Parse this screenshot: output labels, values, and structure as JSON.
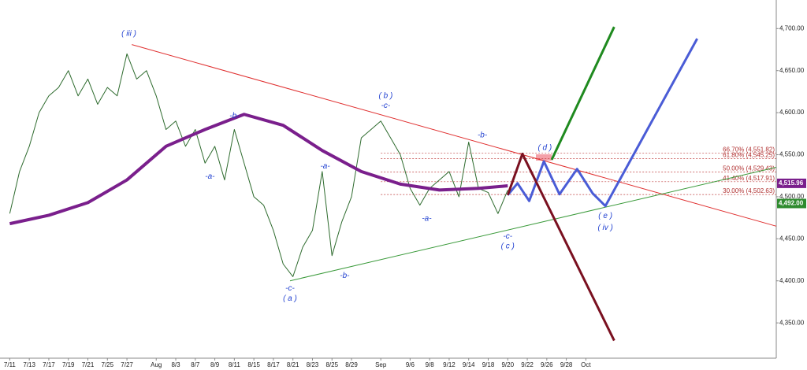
{
  "chart_data": {
    "type": "line",
    "xlim": [
      -1,
      78.5
    ],
    "ylim": [
      4308,
      4734
    ],
    "xticks": [
      {
        "value": 0,
        "label": "7/11"
      },
      {
        "value": 2,
        "label": "7/13"
      },
      {
        "value": 4,
        "label": "7/17"
      },
      {
        "value": 6,
        "label": "7/19"
      },
      {
        "value": 8,
        "label": "7/21"
      },
      {
        "value": 10,
        "label": "7/25"
      },
      {
        "value": 12,
        "label": "7/27"
      },
      {
        "value": 15,
        "label": "Aug"
      },
      {
        "value": 17,
        "label": "8/3"
      },
      {
        "value": 19,
        "label": "8/7"
      },
      {
        "value": 21,
        "label": "8/9"
      },
      {
        "value": 23,
        "label": "8/11"
      },
      {
        "value": 25,
        "label": "8/15"
      },
      {
        "value": 27,
        "label": "8/17"
      },
      {
        "value": 29,
        "label": "8/21"
      },
      {
        "value": 31,
        "label": "8/23"
      },
      {
        "value": 33,
        "label": "8/25"
      },
      {
        "value": 35,
        "label": "8/29"
      },
      {
        "value": 38,
        "label": "Sep"
      },
      {
        "value": 41,
        "label": "9/6"
      },
      {
        "value": 43,
        "label": "9/8"
      },
      {
        "value": 45,
        "label": "9/12"
      },
      {
        "value": 47,
        "label": "9/14"
      },
      {
        "value": 49,
        "label": "9/18"
      },
      {
        "value": 51,
        "label": "9/20"
      },
      {
        "value": 53,
        "label": "9/22"
      },
      {
        "value": 55,
        "label": "9/26"
      },
      {
        "value": 57,
        "label": "9/28"
      },
      {
        "value": 59,
        "label": "Oct"
      }
    ],
    "yticks": [
      {
        "value": 4350,
        "label": "4,350.00"
      },
      {
        "value": 4400,
        "label": "4,400.00"
      },
      {
        "value": 4450,
        "label": "4,450.00"
      },
      {
        "value": 4500,
        "label": "4,500.00"
      },
      {
        "value": 4550,
        "label": "4,550.00"
      },
      {
        "value": 4600,
        "label": "4,600.00"
      },
      {
        "value": 4650,
        "label": "4,650.00"
      },
      {
        "value": 4700,
        "label": "4,700.00"
      }
    ],
    "series": [
      {
        "color": "#2e6b2e",
        "width": 1,
        "x": [
          0,
          1,
          2,
          3,
          4,
          5,
          6,
          7,
          8,
          9,
          10,
          11,
          12,
          13,
          14,
          15,
          16,
          17,
          18,
          19,
          20,
          21,
          22,
          23,
          24,
          25,
          26,
          27,
          28,
          29,
          30,
          31,
          32,
          33,
          34,
          35,
          36,
          37,
          38,
          39,
          40,
          41,
          42,
          43,
          44,
          45,
          46,
          47,
          48,
          49,
          50,
          51
        ],
        "values": [
          4480,
          4530,
          4560,
          4600,
          4620,
          4630,
          4650,
          4620,
          4640,
          4610,
          4630,
          4620,
          4670,
          4640,
          4650,
          4620,
          4580,
          4590,
          4560,
          4580,
          4540,
          4560,
          4520,
          4580,
          4540,
          4500,
          4490,
          4460,
          4420,
          4405,
          4440,
          4460,
          4530,
          4430,
          4470,
          4500,
          4570,
          4580,
          4590,
          4570,
          4550,
          4510,
          4490,
          4510,
          4520,
          4530,
          4500,
          4565,
          4510,
          4505,
          4480,
          4508
        ]
      },
      {
        "color": "#7a1f8c",
        "width": 4,
        "x": [
          0,
          4,
          8,
          12,
          16,
          20,
          24,
          28,
          32,
          36,
          40,
          44,
          48,
          51
        ],
        "values": [
          4468,
          4478,
          4493,
          4520,
          4560,
          4580,
          4598,
          4585,
          4555,
          4530,
          4515,
          4508,
          4510,
          4513
        ]
      },
      {
        "color": "#e03030",
        "width": 1,
        "x": [
          12.5,
          78.5
        ],
        "values": [
          4681,
          4465
        ]
      },
      {
        "color": "#3a9a3a",
        "width": 1,
        "x": [
          28.7,
          78.5
        ],
        "values": [
          4400,
          4535
        ]
      },
      {
        "color": "#4a5cd6",
        "width": 3,
        "x": [
          51,
          52,
          53.2,
          54.7,
          56.3,
          58.1,
          59.7,
          61,
          70.4
        ],
        "values": [
          4502,
          4516,
          4495,
          4542,
          4503,
          4533,
          4504,
          4489,
          4688
        ]
      },
      {
        "color": "#7a1020",
        "width": 3,
        "x": [
          51,
          52.5,
          61.9
        ],
        "values": [
          4502,
          4551,
          4329
        ]
      },
      {
        "color": "#1f8a1f",
        "width": 3,
        "x": [
          55.5,
          61.9
        ],
        "values": [
          4544,
          4702
        ]
      }
    ],
    "fib_levels": [
      {
        "value": 4551.82,
        "label": "66.70% (4,551.82)"
      },
      {
        "value": 4545.25,
        "label": "61.80% (4,545.25)"
      },
      {
        "value": 4529.43,
        "label": "50.00% (4,529.43)"
      },
      {
        "value": 4517.91,
        "label": "41.40% (4,517.91)"
      },
      {
        "value": 4502.63,
        "label": "30.00% (4,502.63)"
      }
    ],
    "price_tags": [
      {
        "value": 4515.96,
        "label": "4,515.96",
        "color": "#7a1f8c"
      },
      {
        "value": 4492.0,
        "label": "4,492.00",
        "color": "#2e8b2e"
      }
    ],
    "annotations": [
      {
        "x": 12.2,
        "y": 4694,
        "text": "( iii )"
      },
      {
        "x": 38.5,
        "y": 4620,
        "text": "( b )"
      },
      {
        "x": 38.5,
        "y": 4608,
        "text": "-c-"
      },
      {
        "x": 23,
        "y": 4596,
        "text": "-b-"
      },
      {
        "x": 20.5,
        "y": 4524,
        "text": "-a-"
      },
      {
        "x": 32.3,
        "y": 4536,
        "text": "-a-"
      },
      {
        "x": 28.7,
        "y": 4391,
        "text": "-c-"
      },
      {
        "x": 28.7,
        "y": 4379,
        "text": "( a )"
      },
      {
        "x": 34.3,
        "y": 4406,
        "text": "-b-"
      },
      {
        "x": 42.7,
        "y": 4474,
        "text": "-a-"
      },
      {
        "x": 48.4,
        "y": 4573,
        "text": "-b-"
      },
      {
        "x": 51,
        "y": 4453,
        "text": "-c-"
      },
      {
        "x": 51,
        "y": 4441,
        "text": "( c )"
      },
      {
        "x": 54.8,
        "y": 4558,
        "text": "( d )"
      },
      {
        "x": 61,
        "y": 4477,
        "text": "( e )"
      },
      {
        "x": 61,
        "y": 4463,
        "text": "( iv )"
      }
    ]
  }
}
